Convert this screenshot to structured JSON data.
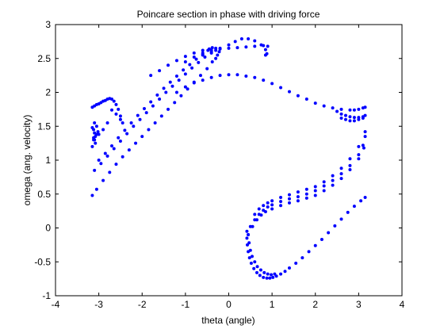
{
  "chart_data": {
    "type": "scatter",
    "title": "Poincare section in phase with driving force",
    "xlabel": "theta (angle)",
    "ylabel": "omega (ang. velocity)",
    "xlim": [
      -4,
      4
    ],
    "ylim": [
      -1,
      3
    ],
    "xticks": [
      -4,
      -3,
      -2,
      -1,
      0,
      1,
      2,
      3,
      4
    ],
    "yticks": [
      -1,
      -0.5,
      0,
      0.5,
      1,
      1.5,
      2,
      2.5,
      3
    ],
    "xtick_labels": [
      "-4",
      "-3",
      "-2",
      "-1",
      "0",
      "1",
      "2",
      "3",
      "4"
    ],
    "ytick_labels": [
      "-1",
      "-0.5",
      "0",
      "0.5",
      "1",
      "1.5",
      "2",
      "2.5",
      "3"
    ],
    "grid": false,
    "marker_color": "#0000ff",
    "marker": "point",
    "series": [
      {
        "x": [
          -3.15,
          -3.05,
          -2.9,
          -2.75,
          -2.6,
          -2.45,
          -2.3,
          -2.15,
          -2.0,
          -1.85,
          -1.7,
          -1.55,
          -1.4,
          -1.25,
          -1.1,
          -0.95,
          -0.8,
          -0.65,
          -0.5,
          -0.38,
          -0.3,
          -0.26,
          -0.22
        ],
        "y": [
          0.48,
          0.57,
          0.7,
          0.82,
          0.94,
          1.05,
          1.15,
          1.25,
          1.35,
          1.45,
          1.55,
          1.65,
          1.75,
          1.85,
          1.95,
          2.05,
          2.15,
          2.25,
          2.35,
          2.45,
          2.5,
          2.55,
          2.6
        ]
      },
      {
        "x": [
          -3.1,
          -2.95,
          -2.8,
          -2.65,
          -2.5,
          -2.35,
          -2.2,
          -2.05,
          -1.9,
          -1.75,
          -1.6,
          -1.45,
          -1.3,
          -1.15,
          -1.0,
          -0.85,
          -0.7,
          -0.55,
          -0.4,
          -0.3
        ],
        "y": [
          0.85,
          0.95,
          1.06,
          1.17,
          1.28,
          1.39,
          1.5,
          1.6,
          1.7,
          1.8,
          1.9,
          2.0,
          2.09,
          2.18,
          2.27,
          2.36,
          2.44,
          2.52,
          2.58,
          2.62
        ]
      },
      {
        "x": [
          -3.0,
          -2.85,
          -2.7,
          -2.55,
          -2.4,
          -2.25,
          -2.1,
          -1.95,
          -1.8,
          -1.65,
          -1.5,
          -1.35,
          -1.2,
          -1.05,
          -0.9,
          -0.75,
          -0.6,
          -0.48,
          -0.38
        ],
        "y": [
          1.0,
          1.1,
          1.21,
          1.33,
          1.44,
          1.55,
          1.66,
          1.76,
          1.86,
          1.96,
          2.06,
          2.15,
          2.24,
          2.33,
          2.41,
          2.49,
          2.56,
          2.62,
          2.66
        ]
      },
      {
        "x": [
          -3.15,
          -3.1,
          -3.05,
          -3.0,
          -2.95,
          -2.9,
          -2.85,
          -2.8,
          -2.75,
          -2.7,
          -2.65,
          -2.6,
          -2.55,
          -2.5,
          -2.45,
          -2.5,
          -2.6,
          -2.7,
          -2.8,
          -2.9,
          -3.0,
          -3.1
        ],
        "y": [
          1.78,
          1.8,
          1.82,
          1.83,
          1.85,
          1.87,
          1.88,
          1.9,
          1.91,
          1.9,
          1.87,
          1.82,
          1.75,
          1.65,
          1.55,
          1.6,
          1.68,
          1.74,
          1.55,
          1.45,
          1.38,
          1.3
        ]
      },
      {
        "x": [
          -3.15,
          -3.12,
          -3.1,
          -3.08,
          -3.05,
          -3.02,
          -3.12,
          -3.08,
          -3.15,
          -3.1,
          -3.05,
          -3.12
        ],
        "y": [
          1.48,
          1.45,
          1.4,
          1.35,
          1.5,
          1.42,
          1.3,
          1.25,
          1.2,
          1.55,
          1.38,
          1.33
        ]
      },
      {
        "x": [
          -1.8,
          -1.6,
          -1.4,
          -1.2,
          -1.0,
          -0.8,
          -0.6,
          -0.45,
          -0.3
        ],
        "y": [
          2.25,
          2.32,
          2.4,
          2.47,
          2.53,
          2.58,
          2.62,
          2.64,
          2.65
        ]
      },
      {
        "x": [
          -1.0,
          -0.8,
          -0.6,
          -0.4,
          -0.2,
          0.0,
          0.2,
          0.4,
          0.6,
          0.8,
          0.9
        ],
        "y": [
          2.45,
          2.52,
          2.58,
          2.62,
          2.64,
          2.65,
          2.66,
          2.67,
          2.68,
          2.69,
          2.68
        ]
      },
      {
        "x": [
          -0.6,
          -0.4,
          -0.2,
          0.0,
          0.15,
          0.3,
          0.45,
          0.6,
          0.75,
          0.85,
          0.88,
          0.85
        ],
        "y": [
          2.55,
          2.6,
          2.65,
          2.7,
          2.75,
          2.79,
          2.79,
          2.76,
          2.7,
          2.63,
          2.57,
          2.55
        ]
      },
      {
        "x": [
          -1.2,
          -1.0,
          -0.8,
          -0.6,
          -0.4,
          -0.2,
          0.0,
          0.2,
          0.4,
          0.6,
          0.8,
          1.0,
          1.2,
          1.4,
          1.6,
          1.8,
          2.0,
          2.2,
          2.4,
          2.6,
          2.8,
          2.9,
          3.0,
          3.1,
          3.15
        ],
        "y": [
          2.0,
          2.08,
          2.14,
          2.18,
          2.22,
          2.25,
          2.26,
          2.26,
          2.24,
          2.22,
          2.18,
          2.13,
          2.07,
          2.01,
          1.95,
          1.9,
          1.84,
          1.8,
          1.77,
          1.75,
          1.74,
          1.74,
          1.75,
          1.77,
          1.78
        ]
      },
      {
        "x": [
          2.5,
          2.6,
          2.7,
          2.8,
          2.9,
          3.0,
          3.1,
          3.15,
          2.6,
          2.7,
          2.8,
          2.9,
          3.0,
          3.1
        ],
        "y": [
          1.72,
          1.68,
          1.66,
          1.64,
          1.63,
          1.63,
          1.64,
          1.66,
          1.62,
          1.6,
          1.58,
          1.58,
          1.6,
          1.62
        ]
      },
      {
        "x": [
          0.5,
          0.6,
          0.7,
          0.8,
          0.9,
          1.0,
          1.2,
          1.4,
          1.6,
          1.8,
          2.0,
          2.2,
          2.4,
          2.6,
          2.8,
          3.0,
          3.1,
          3.15
        ],
        "y": [
          0.02,
          0.12,
          0.2,
          0.26,
          0.31,
          0.34,
          0.39,
          0.43,
          0.46,
          0.5,
          0.55,
          0.62,
          0.7,
          0.8,
          0.92,
          1.08,
          1.22,
          1.35
        ]
      },
      {
        "x": [
          0.45,
          0.55,
          0.65,
          0.75,
          0.85,
          1.0,
          1.2,
          1.4,
          1.6,
          1.8,
          2.0,
          2.2,
          2.4,
          2.6,
          2.8,
          3.0,
          3.12
        ],
        "y": [
          -0.1,
          0.02,
          0.12,
          0.19,
          0.24,
          0.28,
          0.33,
          0.37,
          0.4,
          0.44,
          0.48,
          0.55,
          0.63,
          0.73,
          0.86,
          1.02,
          1.18
        ]
      },
      {
        "x": [
          0.6,
          0.7,
          0.8,
          0.9,
          1.0,
          1.2,
          1.4,
          1.6,
          1.8,
          2.0,
          2.2,
          2.4,
          2.6,
          2.8,
          3.0,
          3.15
        ],
        "y": [
          0.2,
          0.28,
          0.33,
          0.37,
          0.4,
          0.45,
          0.49,
          0.53,
          0.57,
          0.61,
          0.68,
          0.77,
          0.88,
          1.02,
          1.2,
          1.42
        ]
      },
      {
        "x": [
          0.42,
          0.42,
          0.43,
          0.45,
          0.48,
          0.52,
          0.58,
          0.65,
          0.72,
          0.8,
          0.88,
          0.95,
          1.02,
          1.1,
          1.2,
          1.3,
          1.4,
          1.55,
          1.7,
          1.85,
          2.0,
          2.15,
          2.3,
          2.45,
          2.6,
          2.75,
          2.9,
          3.05,
          3.15
        ],
        "y": [
          -0.05,
          -0.15,
          -0.25,
          -0.35,
          -0.44,
          -0.52,
          -0.6,
          -0.66,
          -0.7,
          -0.73,
          -0.74,
          -0.74,
          -0.73,
          -0.71,
          -0.68,
          -0.64,
          -0.59,
          -0.52,
          -0.44,
          -0.35,
          -0.26,
          -0.17,
          -0.07,
          0.03,
          0.13,
          0.23,
          0.32,
          0.4,
          0.45
        ]
      },
      {
        "x": [
          0.45,
          0.47,
          0.5,
          0.54,
          0.6,
          0.66,
          0.74,
          0.82,
          0.9,
          0.98,
          1.06
        ],
        "y": [
          -0.1,
          -0.22,
          -0.33,
          -0.42,
          -0.5,
          -0.57,
          -0.62,
          -0.66,
          -0.68,
          -0.69,
          -0.68
        ]
      }
    ]
  }
}
